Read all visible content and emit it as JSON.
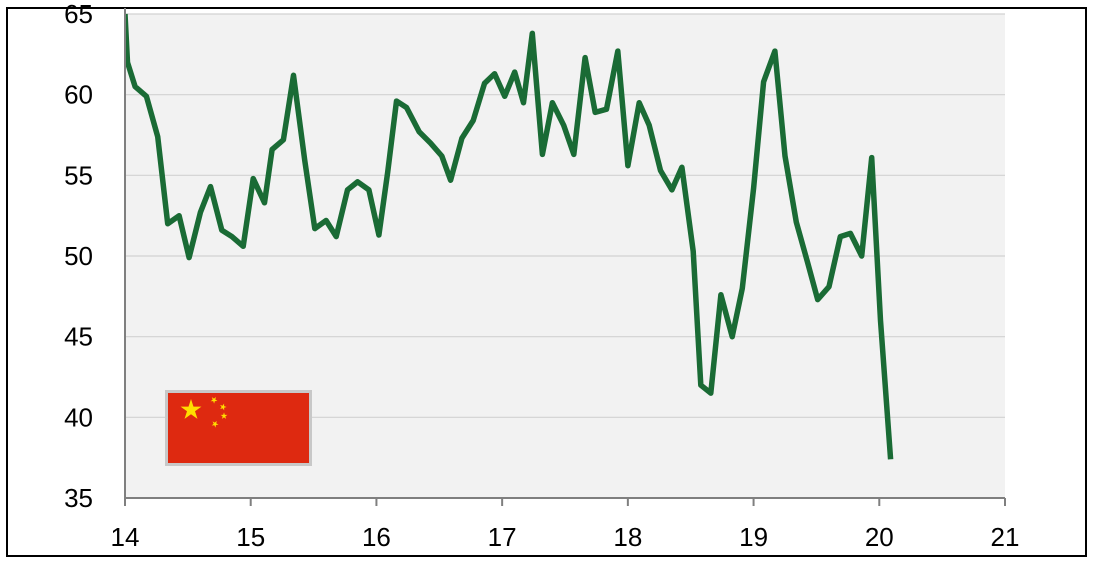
{
  "chart_data": {
    "type": "line",
    "title": "",
    "xlabel": "",
    "ylabel": "",
    "xlim": [
      14,
      21
    ],
    "ylim": [
      35,
      65
    ],
    "x_ticks": [
      14,
      15,
      16,
      17,
      18,
      19,
      20,
      21
    ],
    "x_tick_labels": [
      "14",
      "15",
      "16",
      "17",
      "18",
      "19",
      "20",
      "21"
    ],
    "y_ticks": [
      35,
      40,
      45,
      50,
      55,
      60,
      65
    ],
    "y_tick_labels": [
      "35",
      "40",
      "45",
      "50",
      "55",
      "60",
      "65"
    ],
    "grid": "horizontal",
    "colors": {
      "line": "#1a6b35",
      "plot_bg": "#f2f2f2",
      "grid": "#d2d2d2"
    },
    "flag": "china-flag",
    "series": [
      {
        "points": [
          [
            14.0,
            65.0
          ],
          [
            14.02,
            62.0
          ],
          [
            14.08,
            60.5
          ],
          [
            14.17,
            59.9
          ],
          [
            14.26,
            57.4
          ],
          [
            14.34,
            52.0
          ],
          [
            14.43,
            52.5
          ],
          [
            14.51,
            49.9
          ],
          [
            14.6,
            52.7
          ],
          [
            14.68,
            54.3
          ],
          [
            14.77,
            51.6
          ],
          [
            14.85,
            51.2
          ],
          [
            14.94,
            50.6
          ],
          [
            15.02,
            54.8
          ],
          [
            15.11,
            53.3
          ],
          [
            15.17,
            56.6
          ],
          [
            15.26,
            57.2
          ],
          [
            15.34,
            61.2
          ],
          [
            15.43,
            55.9
          ],
          [
            15.51,
            51.7
          ],
          [
            15.6,
            52.2
          ],
          [
            15.68,
            51.2
          ],
          [
            15.77,
            54.1
          ],
          [
            15.85,
            54.6
          ],
          [
            15.94,
            54.1
          ],
          [
            16.02,
            51.3
          ],
          [
            16.09,
            55.2
          ],
          [
            16.16,
            59.6
          ],
          [
            16.24,
            59.2
          ],
          [
            16.34,
            57.7
          ],
          [
            16.43,
            57.0
          ],
          [
            16.52,
            56.2
          ],
          [
            16.59,
            54.7
          ],
          [
            16.68,
            57.3
          ],
          [
            16.77,
            58.4
          ],
          [
            16.86,
            60.7
          ],
          [
            16.94,
            61.3
          ],
          [
            17.02,
            59.9
          ],
          [
            17.1,
            61.4
          ],
          [
            17.17,
            59.5
          ],
          [
            17.24,
            63.8
          ],
          [
            17.32,
            56.3
          ],
          [
            17.4,
            59.5
          ],
          [
            17.49,
            58.1
          ],
          [
            17.57,
            56.3
          ],
          [
            17.66,
            62.3
          ],
          [
            17.74,
            58.9
          ],
          [
            17.83,
            59.1
          ],
          [
            17.92,
            62.7
          ],
          [
            18.0,
            55.6
          ],
          [
            18.09,
            59.5
          ],
          [
            18.17,
            58.1
          ],
          [
            18.26,
            55.3
          ],
          [
            18.35,
            54.1
          ],
          [
            18.43,
            55.5
          ],
          [
            18.52,
            50.3
          ],
          [
            18.58,
            42.0
          ],
          [
            18.66,
            41.5
          ],
          [
            18.74,
            47.6
          ],
          [
            18.83,
            45.0
          ],
          [
            18.91,
            48.0
          ],
          [
            19.0,
            54.2
          ],
          [
            19.08,
            60.8
          ],
          [
            19.17,
            62.7
          ],
          [
            19.25,
            56.2
          ],
          [
            19.34,
            52.1
          ],
          [
            19.43,
            49.6
          ],
          [
            19.51,
            47.3
          ],
          [
            19.6,
            48.1
          ],
          [
            19.69,
            51.2
          ],
          [
            19.77,
            51.4
          ],
          [
            19.86,
            50.0
          ],
          [
            19.94,
            56.1
          ],
          [
            20.01,
            46.0
          ],
          [
            20.09,
            37.4
          ]
        ]
      }
    ]
  }
}
